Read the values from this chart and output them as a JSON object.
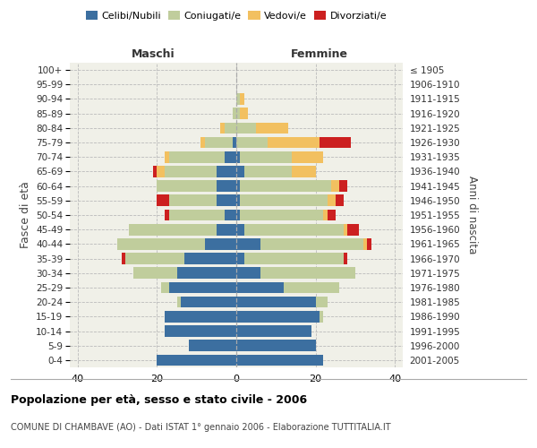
{
  "age_groups": [
    "0-4",
    "5-9",
    "10-14",
    "15-19",
    "20-24",
    "25-29",
    "30-34",
    "35-39",
    "40-44",
    "45-49",
    "50-54",
    "55-59",
    "60-64",
    "65-69",
    "70-74",
    "75-79",
    "80-84",
    "85-89",
    "90-94",
    "95-99",
    "100+"
  ],
  "birth_years": [
    "2001-2005",
    "1996-2000",
    "1991-1995",
    "1986-1990",
    "1981-1985",
    "1976-1980",
    "1971-1975",
    "1966-1970",
    "1961-1965",
    "1956-1960",
    "1951-1955",
    "1946-1950",
    "1941-1945",
    "1936-1940",
    "1931-1935",
    "1926-1930",
    "1921-1925",
    "1916-1920",
    "1911-1915",
    "1906-1910",
    "≤ 1905"
  ],
  "maschi_celibi": [
    20,
    12,
    18,
    18,
    14,
    17,
    15,
    13,
    8,
    5,
    3,
    5,
    5,
    5,
    3,
    1,
    0,
    0,
    0,
    0,
    0
  ],
  "maschi_coniugati": [
    0,
    0,
    0,
    0,
    1,
    2,
    11,
    15,
    22,
    22,
    14,
    12,
    15,
    13,
    14,
    7,
    3,
    1,
    0,
    0,
    0
  ],
  "maschi_vedovi": [
    0,
    0,
    0,
    0,
    0,
    0,
    0,
    0,
    0,
    0,
    0,
    0,
    0,
    2,
    1,
    1,
    1,
    0,
    0,
    0,
    0
  ],
  "maschi_divorziati": [
    0,
    0,
    0,
    0,
    0,
    0,
    0,
    1,
    0,
    0,
    1,
    3,
    0,
    1,
    0,
    0,
    0,
    0,
    0,
    0,
    0
  ],
  "femmine_nubili": [
    22,
    20,
    19,
    21,
    20,
    12,
    6,
    2,
    6,
    2,
    1,
    1,
    1,
    2,
    1,
    0,
    0,
    0,
    0,
    0,
    0
  ],
  "femmine_coniugate": [
    0,
    0,
    0,
    1,
    3,
    14,
    24,
    25,
    26,
    25,
    21,
    22,
    23,
    12,
    13,
    8,
    5,
    1,
    1,
    0,
    0
  ],
  "femmine_vedove": [
    0,
    0,
    0,
    0,
    0,
    0,
    0,
    0,
    1,
    1,
    1,
    2,
    2,
    6,
    8,
    13,
    8,
    2,
    1,
    0,
    0
  ],
  "femmine_divorziate": [
    0,
    0,
    0,
    0,
    0,
    0,
    0,
    1,
    1,
    3,
    2,
    2,
    2,
    0,
    0,
    8,
    0,
    0,
    0,
    0,
    0
  ],
  "color_celibi": "#3C6FA0",
  "color_coniugati": "#C0CD9C",
  "color_vedovi": "#F2C060",
  "color_divorziati": "#CC2020",
  "bg_color": "#F0F0E8",
  "xlim": 42,
  "title": "Popolazione per età, sesso e stato civile - 2006",
  "subtitle": "COMUNE DI CHAMBAVE (AO) - Dati ISTAT 1° gennaio 2006 - Elaborazione TUTTITALIA.IT",
  "ylabel_left": "Fasce di età",
  "ylabel_right": "Anni di nascita",
  "label_maschi": "Maschi",
  "label_femmine": "Femmine",
  "legend_labels": [
    "Celibi/Nubili",
    "Coniugati/e",
    "Vedovi/e",
    "Divorziati/e"
  ]
}
